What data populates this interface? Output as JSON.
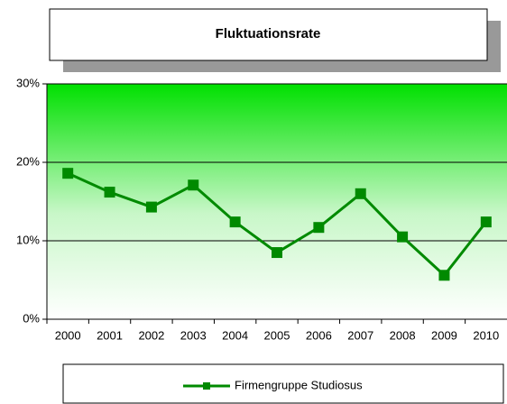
{
  "chart_data": {
    "type": "line",
    "title": "Fluktuationsrate",
    "categories": [
      "2000",
      "2001",
      "2002",
      "2003",
      "2004",
      "2005",
      "2006",
      "2007",
      "2008",
      "2009",
      "2010"
    ],
    "series": [
      {
        "name": "Firmengruppe Studiosus",
        "color": "#008a00",
        "values": [
          18.6,
          16.2,
          14.3,
          17.1,
          12.4,
          8.5,
          11.7,
          16.0,
          10.5,
          5.6,
          12.4
        ]
      }
    ],
    "ylim": [
      0,
      30
    ],
    "yticks": [
      {
        "value": 0,
        "label": "0%"
      },
      {
        "value": 10,
        "label": "10%"
      },
      {
        "value": 20,
        "label": "20%"
      },
      {
        "value": 30,
        "label": "30%"
      }
    ],
    "grid": true,
    "legend": "bottom"
  }
}
